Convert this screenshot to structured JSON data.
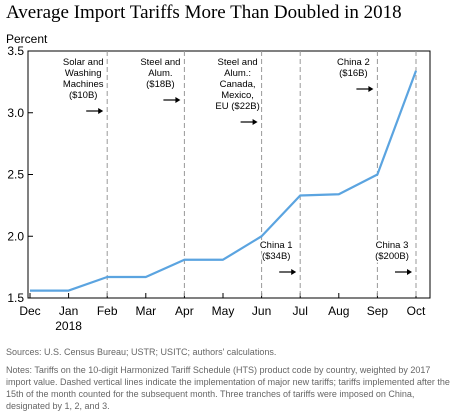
{
  "title": "Average Import Tariffs More Than Doubled in 2018",
  "colors": {
    "line": "#5ba4e0",
    "dashed": "#999999",
    "frame": "#000000"
  },
  "chart_data": {
    "type": "line",
    "title": "Average Import Tariffs More Than Doubled in 2018",
    "ylabel": "Percent",
    "xlabel": "",
    "ylim": [
      1.5,
      3.5
    ],
    "yticks": [
      1.5,
      2.0,
      2.5,
      3.0,
      3.5
    ],
    "ytick_labels": [
      "1.5",
      "2.0",
      "2.5",
      "3.0",
      "3.5"
    ],
    "categories": [
      "Dec",
      "Jan",
      "Feb",
      "Mar",
      "Apr",
      "May",
      "Jun",
      "Jul",
      "Aug",
      "Sep",
      "Oct"
    ],
    "x_sublabel": {
      "at": "Jan",
      "text": "2018"
    },
    "series": [
      {
        "values": [
          1.56,
          1.56,
          1.67,
          1.67,
          1.81,
          1.81,
          2.0,
          2.33,
          2.34,
          2.5,
          3.34
        ]
      }
    ],
    "grid": false,
    "annotations": [
      {
        "at": "Feb",
        "lines": [
          "Solar and",
          "Washing",
          "Machines",
          "($10B)"
        ],
        "position": "top"
      },
      {
        "at": "Apr",
        "lines": [
          "Steel and",
          "Alum.",
          "($18B)"
        ],
        "position": "top"
      },
      {
        "at": "Jun",
        "lines": [
          "Steel and",
          "Alum.:",
          "Canada,",
          "Mexico,",
          "EU ($22B)"
        ],
        "position": "top"
      },
      {
        "at": "Jul",
        "lines": [
          "China 1",
          "($34B)"
        ],
        "position": "bottom"
      },
      {
        "at": "Sep",
        "lines": [
          "China 2",
          "($16B)"
        ],
        "position": "top"
      },
      {
        "at": "Oct",
        "lines": [
          "China 3",
          "($200B)"
        ],
        "position": "bottom"
      }
    ]
  },
  "notes": {
    "sources": "Sources: U.S. Census Bureau; USTR; USITC; authors' calculations.",
    "text": "Notes: Tariffs on the 10-digit Harmonized Tariff Schedule (HTS) product code by country, weighted by 2017 import value. Dashed vertical lines indicate the implementation of major new tariffs; tariffs implemented after the 15th of the month counted for the subsequent month. Three tranches of tariffs were imposed on China, designated by 1, 2, and 3."
  }
}
